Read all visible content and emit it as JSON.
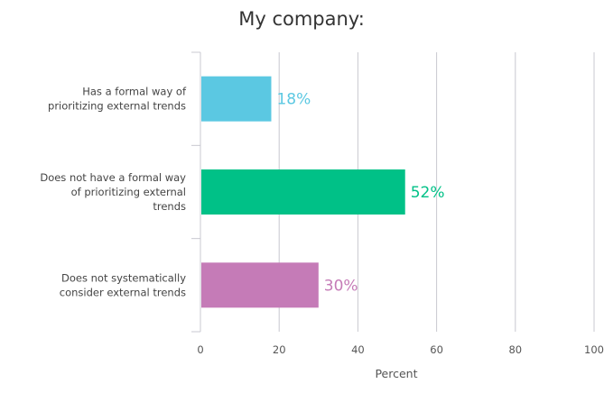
{
  "chart_data": {
    "type": "bar",
    "orientation": "horizontal",
    "title": "My company:",
    "xlabel": "Percent",
    "ylabel": "",
    "xlim": [
      0,
      100
    ],
    "xticks": [
      0,
      20,
      40,
      60,
      80,
      100
    ],
    "xtick_labels": [
      "0",
      "20",
      "40",
      "60",
      "80",
      "100"
    ],
    "grid": true,
    "legend": "none",
    "categories": [
      [
        "Has a formal way of",
        "prioritizing external trends"
      ],
      [
        "Does not have a formal way",
        "of prioritizing external",
        "trends"
      ],
      [
        "Does not systematically",
        "consider external trends"
      ]
    ],
    "values": [
      18,
      52,
      30
    ],
    "value_labels": [
      "18%",
      "52%",
      "30%"
    ],
    "colors": [
      "#5bc8e2",
      "#00c187",
      "#c57bb7"
    ]
  }
}
